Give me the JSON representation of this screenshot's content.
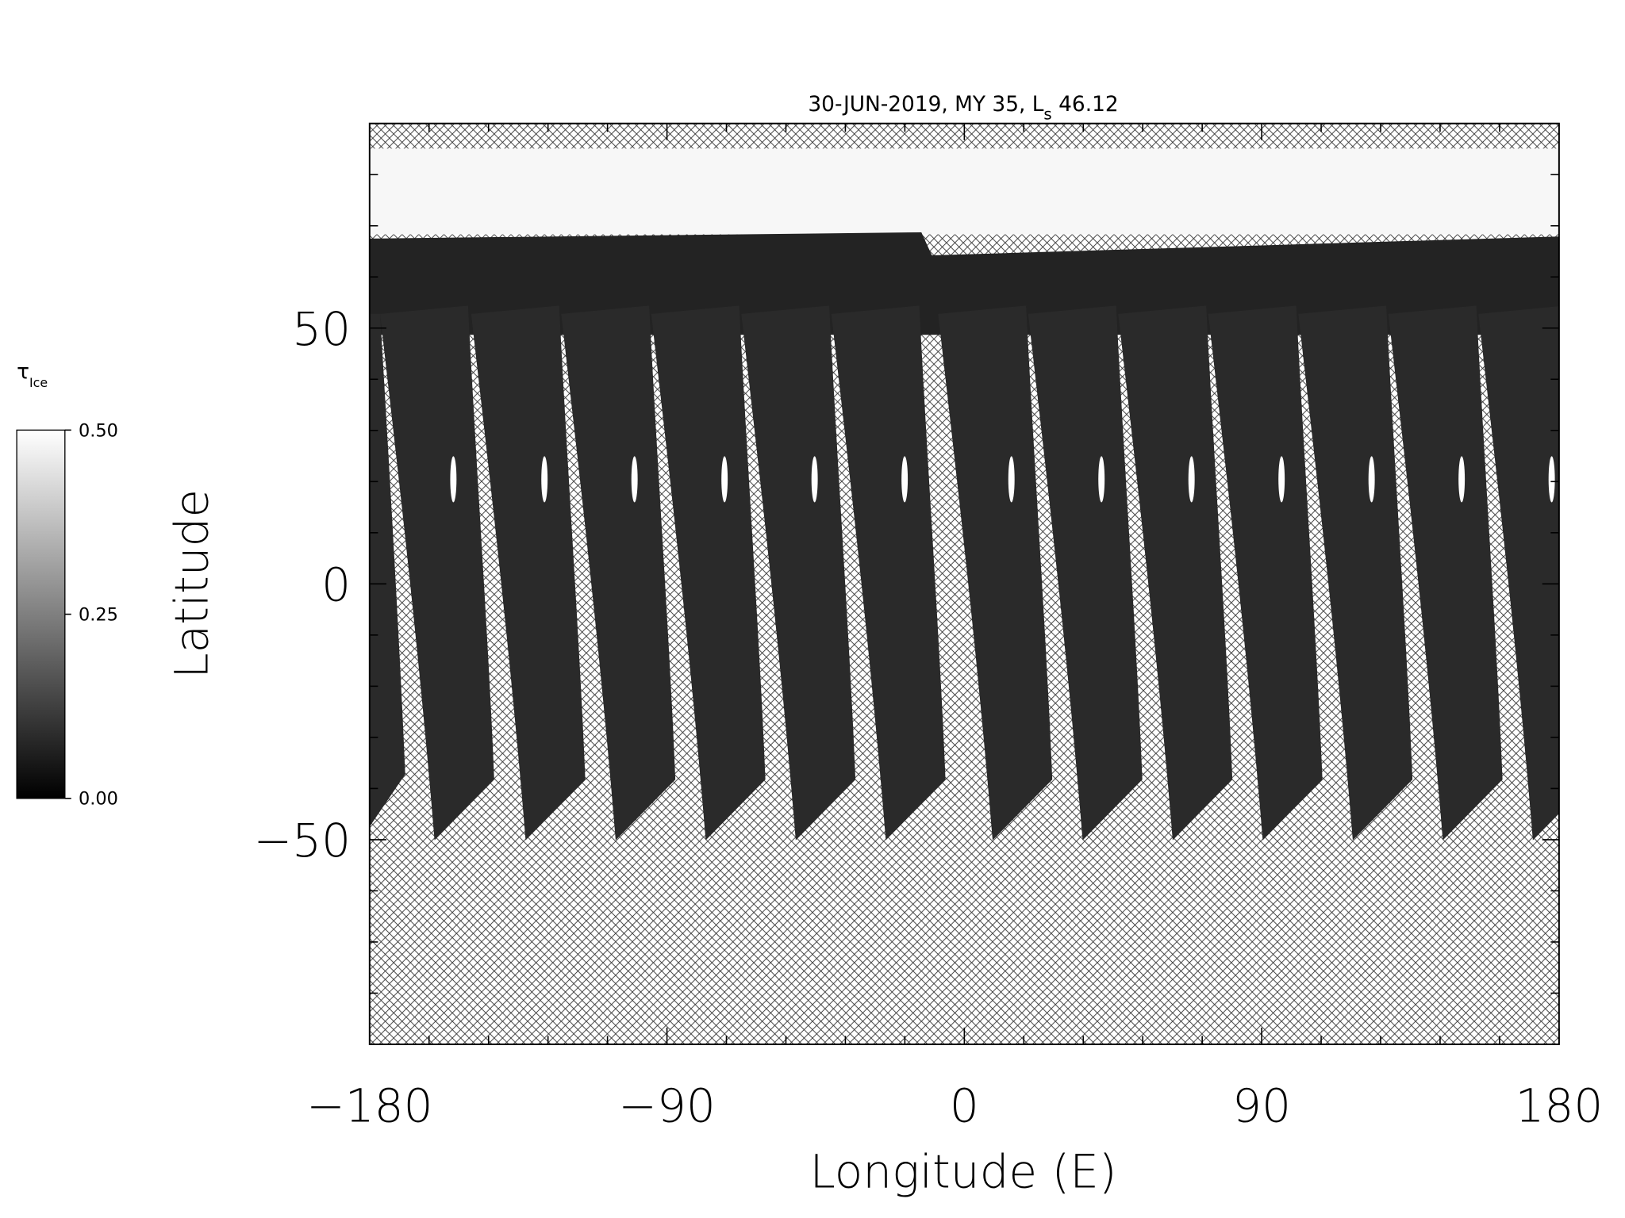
{
  "chart_data": {
    "type": "map",
    "title_parts": [
      "30-JUN-2019, MY 35,  L",
      "s",
      " 46.12"
    ],
    "x_label": "Longitude (E)",
    "y_label": "Latitude",
    "xlim": [
      -180,
      180
    ],
    "ylim": [
      -90,
      90
    ],
    "xticks": [
      {
        "value": -180,
        "label": "−180"
      },
      {
        "value": -90,
        "label": "−90"
      },
      0,
      90,
      180
    ],
    "yticks": [
      {
        "value": -50,
        "label": "−50"
      },
      0,
      50
    ],
    "xminorticks": [
      -162,
      -144,
      -126,
      -108,
      -72,
      -54,
      -36,
      -18,
      18,
      36,
      54,
      72,
      108,
      126,
      144,
      162
    ],
    "yminorticks": [
      -80,
      -70,
      -60,
      -40,
      -30,
      -20,
      -10,
      10,
      20,
      30,
      40,
      60,
      70,
      80
    ],
    "colorbar": {
      "label": "τ",
      "label_subscript": "Ice",
      "clim": [
        0,
        0.5
      ],
      "ticks": [
        {
          "value": 0,
          "label": "0.00"
        },
        {
          "value": 0.25,
          "label": "0.25"
        },
        {
          "value": 0.5,
          "label": "0.50"
        }
      ]
    }
  }
}
